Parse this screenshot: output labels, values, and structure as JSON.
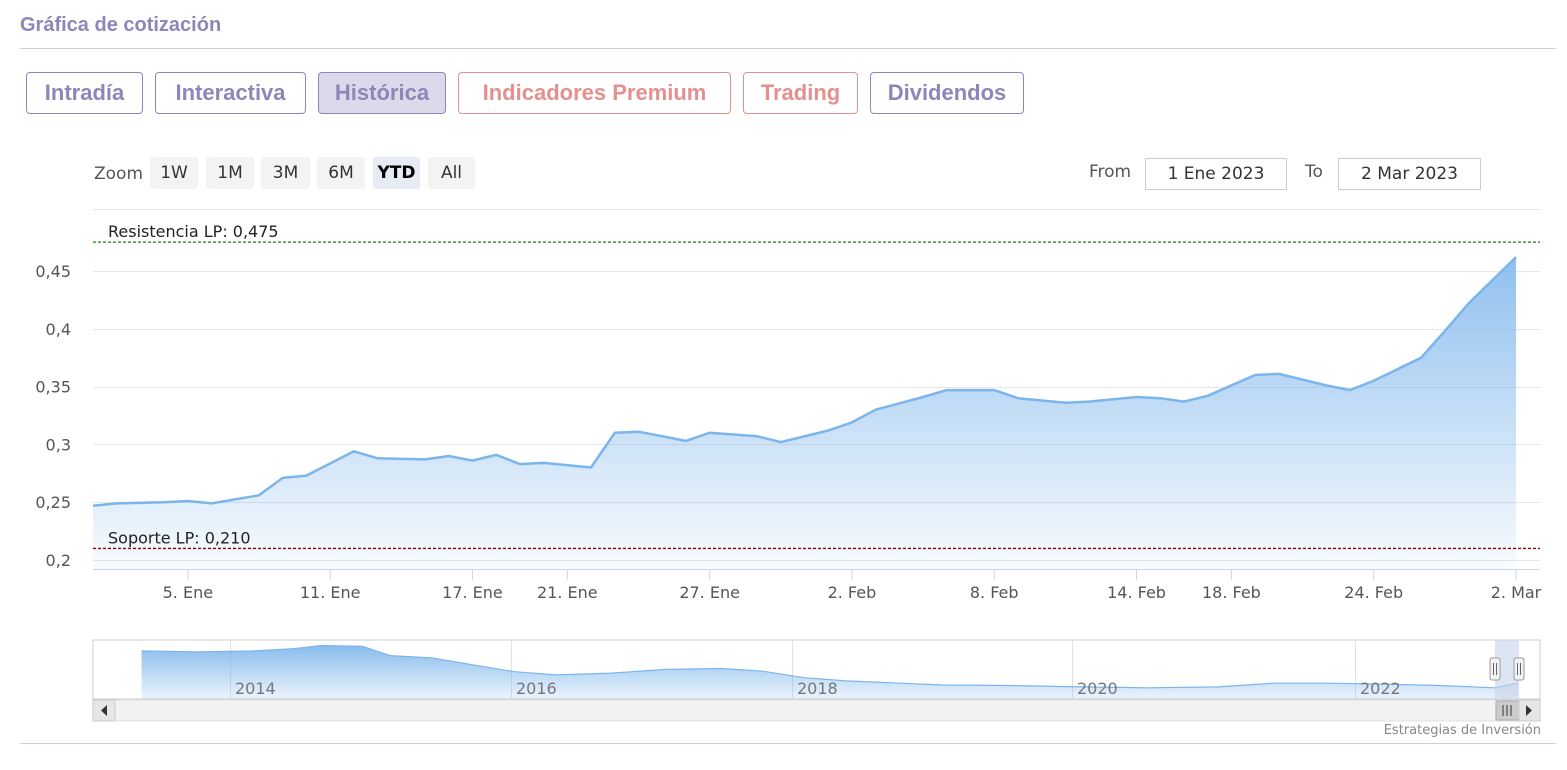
{
  "section_title": "Gráfica de cotización",
  "tabs": [
    {
      "label": "Intradía",
      "active": false,
      "premium": false
    },
    {
      "label": "Interactiva",
      "active": false,
      "premium": false
    },
    {
      "label": "Histórica",
      "active": true,
      "premium": false
    },
    {
      "label": "Indicadores Premium",
      "active": false,
      "premium": true
    },
    {
      "label": "Trading",
      "active": false,
      "premium": true
    },
    {
      "label": "Dividendos",
      "active": false,
      "premium": false
    }
  ],
  "range_selector": {
    "zoom_label": "Zoom",
    "buttons": [
      "1W",
      "1M",
      "3M",
      "6M",
      "YTD",
      "All"
    ],
    "selected": "YTD",
    "from_label": "From",
    "from_value": "1 Ene 2023",
    "to_label": "To",
    "to_value": "2 Mar 2023"
  },
  "colors": {
    "accent": "#8e86b8",
    "premium": "#e3908f",
    "series_line": "#7cb5ec",
    "resistance_line": "#1a7a1a",
    "support_line": "#8b0000"
  },
  "chart_data": {
    "type": "area",
    "ylim": [
      0.2,
      0.475
    ],
    "y_ticks": [
      0.2,
      0.25,
      0.3,
      0.35,
      0.4,
      0.45
    ],
    "y_tick_labels": [
      "0,2",
      "0,25",
      "0,3",
      "0,35",
      "0,4",
      "0,45"
    ],
    "x_ticks": [
      "2023-01-05",
      "2023-01-11",
      "2023-01-17",
      "2023-01-21",
      "2023-01-27",
      "2023-02-02",
      "2023-02-08",
      "2023-02-14",
      "2023-02-18",
      "2023-02-24",
      "2023-03-02"
    ],
    "x_tick_labels": [
      "5. Ene",
      "11. Ene",
      "17. Ene",
      "21. Ene",
      "27. Ene",
      "2. Feb",
      "8. Feb",
      "14. Feb",
      "18. Feb",
      "24. Feb",
      "2. Mar"
    ],
    "xlim": [
      "2023-01-01",
      "2023-03-02"
    ],
    "series": [
      {
        "points": [
          [
            "2023-01-01",
            0.247
          ],
          [
            "2023-01-02",
            0.249
          ],
          [
            "2023-01-04",
            0.25
          ],
          [
            "2023-01-05",
            0.251
          ],
          [
            "2023-01-06",
            0.249
          ],
          [
            "2023-01-08",
            0.256
          ],
          [
            "2023-01-09",
            0.271
          ],
          [
            "2023-01-10",
            0.273
          ],
          [
            "2023-01-12",
            0.294
          ],
          [
            "2023-01-13",
            0.288
          ],
          [
            "2023-01-15",
            0.287
          ],
          [
            "2023-01-16",
            0.29
          ],
          [
            "2023-01-17",
            0.286
          ],
          [
            "2023-01-18",
            0.291
          ],
          [
            "2023-01-19",
            0.283
          ],
          [
            "2023-01-20",
            0.284
          ],
          [
            "2023-01-22",
            0.28
          ],
          [
            "2023-01-23",
            0.31
          ],
          [
            "2023-01-24",
            0.311
          ],
          [
            "2023-01-26",
            0.303
          ],
          [
            "2023-01-27",
            0.31
          ],
          [
            "2023-01-29",
            0.307
          ],
          [
            "2023-01-30",
            0.302
          ],
          [
            "2023-02-01",
            0.312
          ],
          [
            "2023-02-02",
            0.319
          ],
          [
            "2023-02-03",
            0.33
          ],
          [
            "2023-02-05",
            0.341
          ],
          [
            "2023-02-06",
            0.347
          ],
          [
            "2023-02-08",
            0.347
          ],
          [
            "2023-02-09",
            0.34
          ],
          [
            "2023-02-11",
            0.336
          ],
          [
            "2023-02-12",
            0.337
          ],
          [
            "2023-02-14",
            0.341
          ],
          [
            "2023-02-15",
            0.34
          ],
          [
            "2023-02-16",
            0.337
          ],
          [
            "2023-02-17",
            0.342
          ],
          [
            "2023-02-19",
            0.36
          ],
          [
            "2023-02-20",
            0.361
          ],
          [
            "2023-02-22",
            0.351
          ],
          [
            "2023-02-23",
            0.347
          ],
          [
            "2023-02-24",
            0.355
          ],
          [
            "2023-02-26",
            0.375
          ],
          [
            "2023-02-27",
            0.398
          ],
          [
            "2023-02-28",
            0.422
          ],
          [
            "2023-03-02",
            0.462
          ]
        ]
      }
    ],
    "plot_lines": [
      {
        "label": "Resistencia LP: 0,475",
        "value": 0.475
      },
      {
        "label": "Soporte LP: 0,210",
        "value": 0.21
      }
    ],
    "navigator": {
      "x_tick_labels": [
        "2014",
        "2016",
        "2018",
        "2020",
        "2022"
      ],
      "years": [
        2013.2,
        2013.6,
        2014.0,
        2014.3,
        2014.5,
        2014.8,
        2015.0,
        2015.3,
        2015.6,
        2015.9,
        2016.2,
        2016.6,
        2017.0,
        2017.4,
        2017.7,
        2018.0,
        2018.3,
        2018.7,
        2019.0,
        2019.5,
        2020.0,
        2020.5,
        2021.0,
        2021.4,
        2021.8,
        2022.2,
        2022.6,
        2023.0,
        2023.17
      ],
      "values": [
        1.0,
        0.98,
        1.0,
        1.05,
        1.12,
        1.1,
        0.9,
        0.85,
        0.7,
        0.55,
        0.48,
        0.52,
        0.6,
        0.62,
        0.56,
        0.42,
        0.35,
        0.3,
        0.26,
        0.25,
        0.22,
        0.2,
        0.22,
        0.3,
        0.3,
        0.28,
        0.25,
        0.2,
        0.3
      ],
      "xlim": [
        2013.0,
        2023.17
      ]
    },
    "grid": true,
    "legend": "none"
  },
  "credit": "Estrategias de Inversión"
}
